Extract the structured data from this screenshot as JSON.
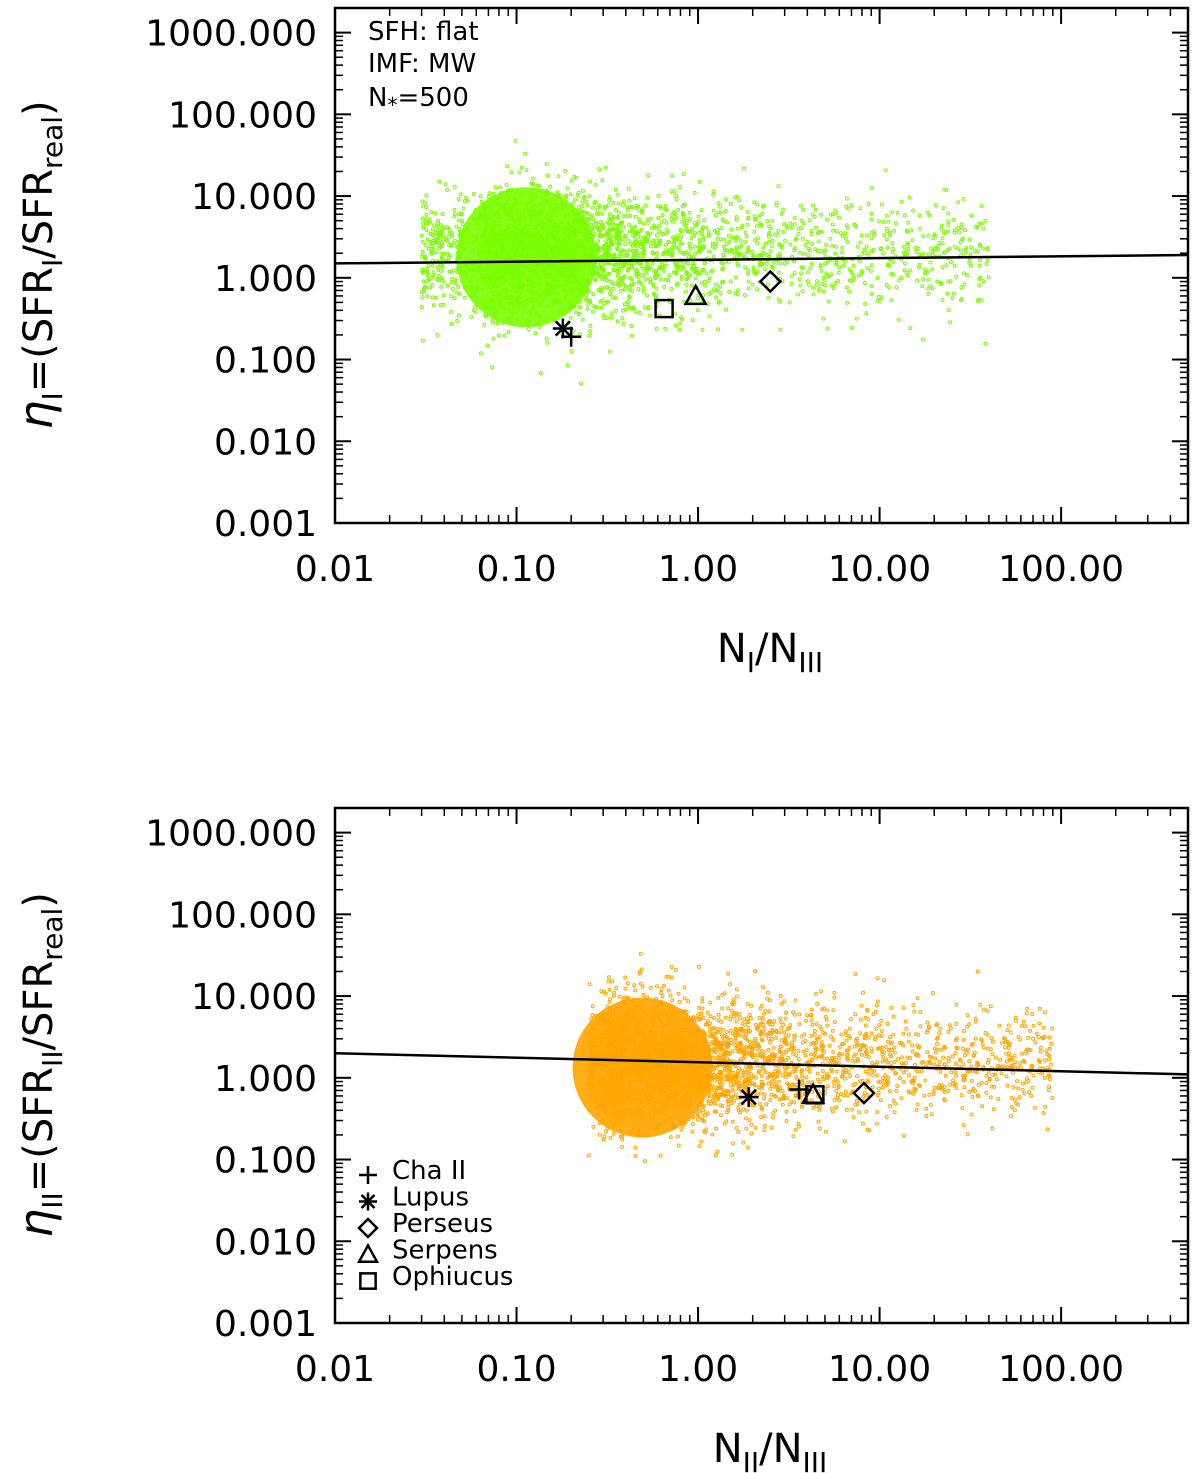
{
  "chart_data": [
    {
      "type": "scatter",
      "title": "",
      "xlabel": "N_I/N_III",
      "ylabel": "η_I=(SFR_I/SFR_real)",
      "x_scale": "log",
      "y_scale": "log",
      "xlim": [
        0.01,
        500
      ],
      "ylim": [
        0.001,
        2000
      ],
      "x_ticks": [
        "0.01",
        "0.10",
        "1.00",
        "10.00",
        "100.00"
      ],
      "y_ticks": [
        "0.001",
        "0.010",
        "0.100",
        "1.000",
        "10.000",
        "100.000",
        "1000.000"
      ],
      "annotations": [
        "SFH: flat",
        "IMF: MW",
        "N*=500"
      ],
      "cloud": {
        "color": "#7cfc00",
        "x_range": [
          0.03,
          40
        ],
        "y_range": [
          0.025,
          140
        ],
        "dense_center": [
          0.08,
          2.0
        ]
      },
      "fit_line": {
        "x": [
          0.01,
          500
        ],
        "y": [
          1.5,
          1.9
        ]
      },
      "points": [
        {
          "name": "Cha II",
          "marker": "plus",
          "x": 0.2,
          "y": 0.19
        },
        {
          "name": "Lupus",
          "marker": "asterisk",
          "x": 0.18,
          "y": 0.24
        },
        {
          "name": "Perseus",
          "marker": "diamond",
          "x": 2.5,
          "y": 0.9
        },
        {
          "name": "Serpens",
          "marker": "triangle",
          "x": 0.97,
          "y": 0.6
        },
        {
          "name": "Ophiucus",
          "marker": "square",
          "x": 0.65,
          "y": 0.42
        }
      ]
    },
    {
      "type": "scatter",
      "title": "",
      "xlabel": "N_II/N_III",
      "ylabel": "η_II=(SFR_II/SFR_real)",
      "x_scale": "log",
      "y_scale": "log",
      "xlim": [
        0.01,
        500
      ],
      "ylim": [
        0.001,
        2000
      ],
      "x_ticks": [
        "0.01",
        "0.10",
        "1.00",
        "10.00",
        "100.00"
      ],
      "y_ticks": [
        "0.001",
        "0.010",
        "0.100",
        "1.000",
        "10.000",
        "100.000",
        "1000.000"
      ],
      "cloud": {
        "color": "#ffa500",
        "x_range": [
          0.25,
          90
        ],
        "y_range": [
          0.035,
          120
        ],
        "dense_center": [
          0.35,
          1.5
        ]
      },
      "fit_line": {
        "x": [
          0.01,
          500
        ],
        "y": [
          2.0,
          1.1
        ]
      },
      "points": [
        {
          "name": "Cha II",
          "marker": "plus",
          "x": 3.6,
          "y": 0.72
        },
        {
          "name": "Lupus",
          "marker": "asterisk",
          "x": 1.9,
          "y": 0.58
        },
        {
          "name": "Perseus",
          "marker": "diamond",
          "x": 8.2,
          "y": 0.65
        },
        {
          "name": "Serpens",
          "marker": "triangle",
          "x": 4.3,
          "y": 0.62
        },
        {
          "name": "Ophiucus",
          "marker": "square",
          "x": 4.4,
          "y": 0.62
        }
      ],
      "legend": {
        "placement": "bottom-left",
        "entries": [
          {
            "label": "Cha II",
            "marker": "plus"
          },
          {
            "label": "Lupus",
            "marker": "asterisk"
          },
          {
            "label": "Perseus",
            "marker": "diamond"
          },
          {
            "label": "Serpens",
            "marker": "triangle"
          },
          {
            "label": "Ophiucus",
            "marker": "square"
          }
        ]
      }
    }
  ]
}
